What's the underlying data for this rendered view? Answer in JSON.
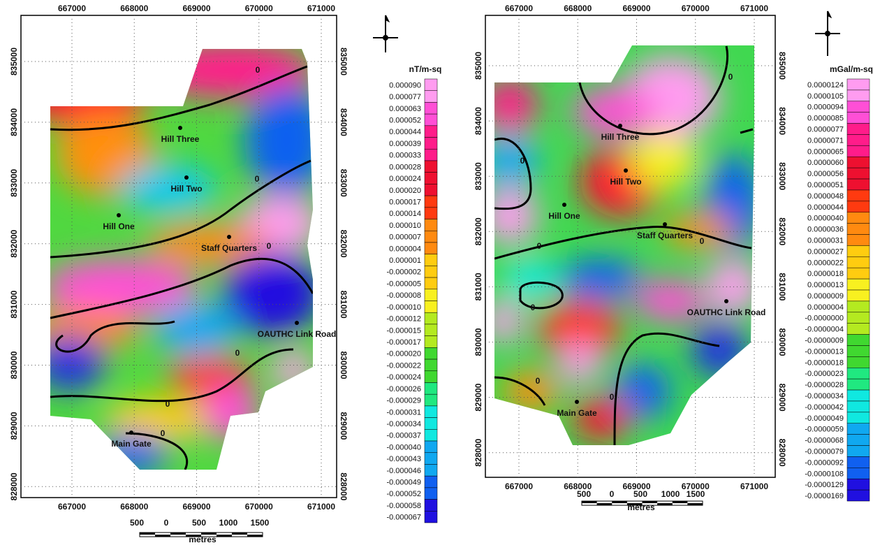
{
  "maps": [
    {
      "x_ticks": [
        667000,
        668000,
        669000,
        670000,
        671000
      ],
      "y_ticks": [
        828000,
        829000,
        830000,
        831000,
        832000,
        833000,
        834000,
        835000
      ],
      "places": [
        "Hill Three",
        "Hill Two",
        "Hill One",
        "Staff Quarters",
        "OAUTHC Link Road",
        "Main Gate"
      ],
      "contour_labels": [
        "0",
        "0",
        "0",
        "0",
        "0",
        "0"
      ],
      "units": "nT/m-sq",
      "legend_labels": [
        "0.000090",
        "0.000077",
        "0.000063",
        "0.000052",
        "0.000044",
        "0.000039",
        "0.000033",
        "0.000028",
        "0.000024",
        "0.000020",
        "0.000017",
        "0.000014",
        "0.000010",
        "0.000007",
        "0.000004",
        "0.000001",
        "-0.000002",
        "-0.000005",
        "-0.000008",
        "-0.000010",
        "-0.000012",
        "-0.000015",
        "-0.000017",
        "-0.000020",
        "-0.000022",
        "-0.000024",
        "-0.000026",
        "-0.000029",
        "-0.000031",
        "-0.000034",
        "-0.000037",
        "-0.000040",
        "-0.000043",
        "-0.000046",
        "-0.000049",
        "-0.000052",
        "-0.000058",
        "-0.000067"
      ],
      "scale_labels": [
        "500",
        "0",
        "500",
        "1000",
        "1500"
      ],
      "scale_unit": "metres"
    },
    {
      "x_ticks": [
        667000,
        668000,
        669000,
        670000,
        671000
      ],
      "y_ticks": [
        828000,
        829000,
        830000,
        831000,
        832000,
        833000,
        834000,
        835000
      ],
      "places": [
        "Hill Three",
        "Hill Two",
        "Hill One",
        "Staff Quarters",
        "OAUTHC Link Road",
        "Main Gate"
      ],
      "contour_labels": [
        "0",
        "0",
        "0",
        "0",
        "0",
        "0",
        "0"
      ],
      "units": "mGal/m-sq",
      "legend_labels": [
        "0.0000124",
        "0.0000105",
        "0.0000094",
        "0.0000085",
        "0.0000077",
        "0.0000071",
        "0.0000065",
        "0.0000060",
        "0.0000056",
        "0.0000051",
        "0.0000048",
        "0.0000044",
        "0.0000040",
        "0.0000036",
        "0.0000031",
        "0.0000027",
        "0.0000022",
        "0.0000018",
        "0.0000013",
        "0.0000009",
        "0.0000004",
        "-0.0000000",
        "-0.0000004",
        "-0.0000009",
        "-0.0000013",
        "-0.0000018",
        "-0.0000023",
        "-0.0000028",
        "-0.0000034",
        "-0.0000042",
        "-0.0000049",
        "-0.0000059",
        "-0.0000068",
        "-0.0000079",
        "-0.0000092",
        "-0.0000108",
        "-0.0000129",
        "-0.0000169"
      ],
      "scale_labels": [
        "500",
        "0",
        "500",
        "1000",
        "1500"
      ],
      "scale_unit": "metres"
    }
  ]
}
